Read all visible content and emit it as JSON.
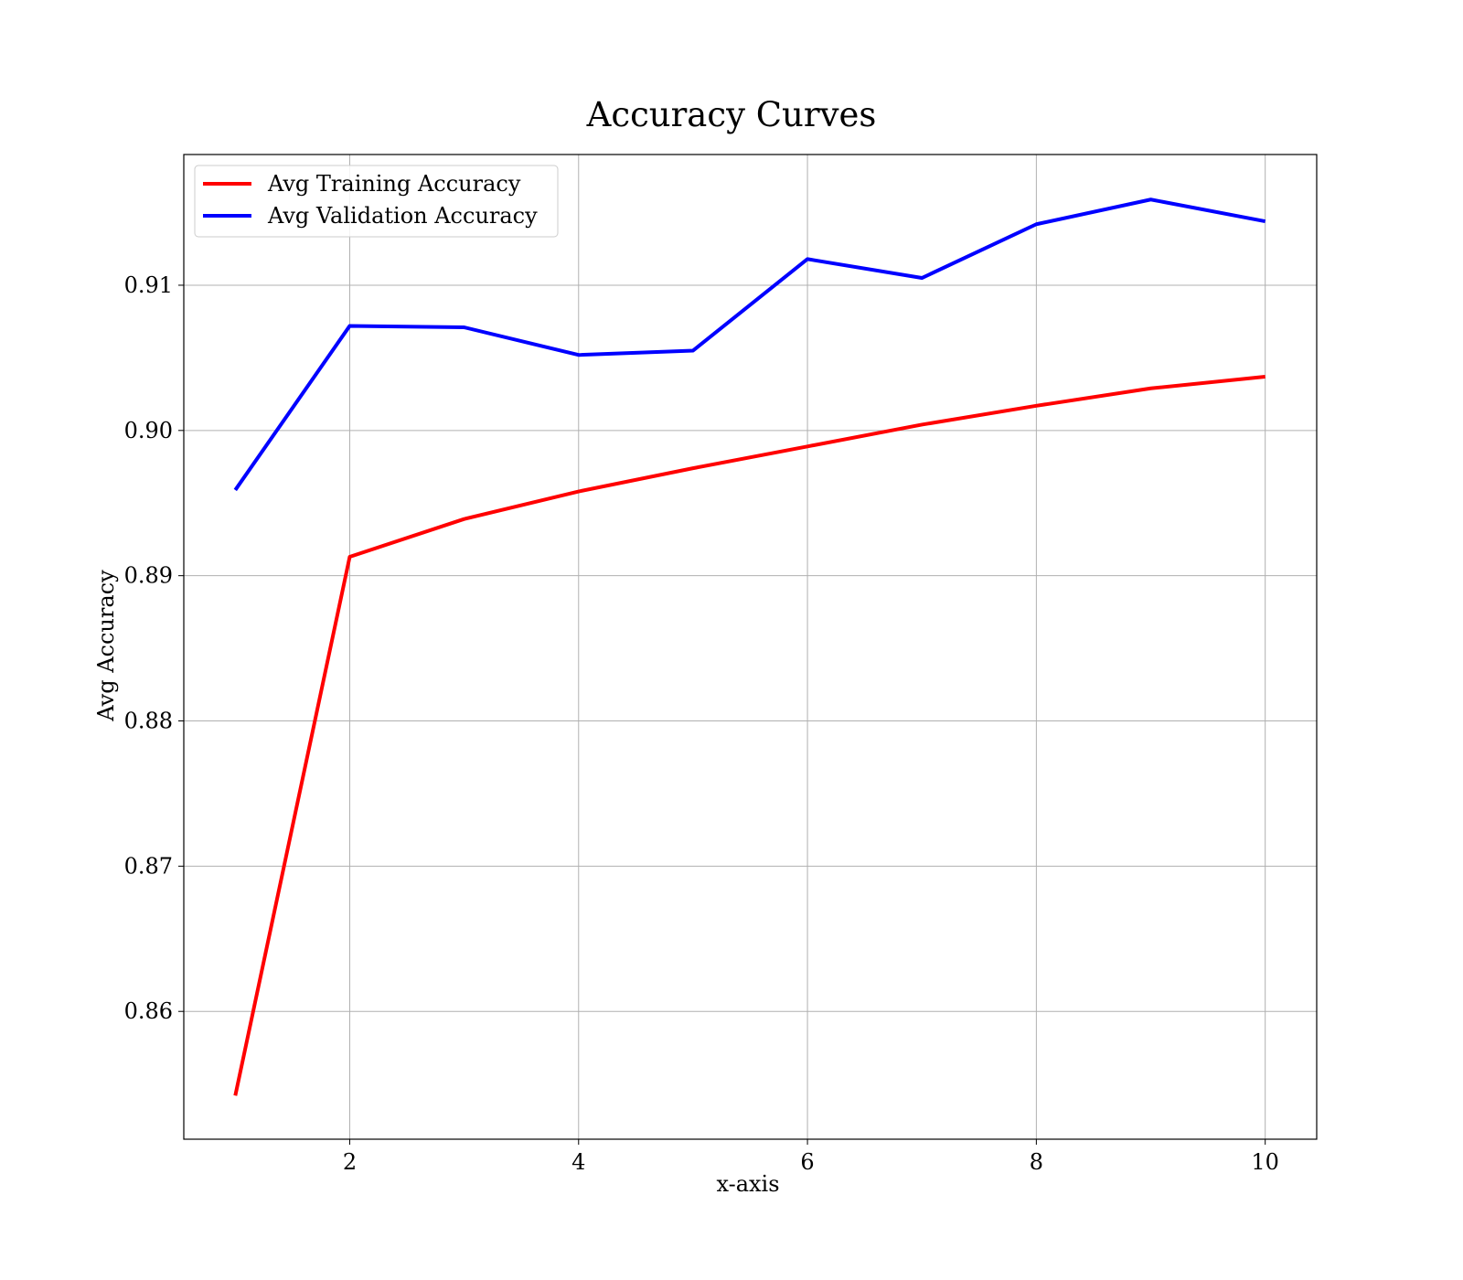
{
  "chart_data": {
    "type": "line",
    "title": "Accuracy Curves",
    "xlabel": "x-axis",
    "ylabel": "Avg Accuracy",
    "xlim": [
      0.55,
      10.45
    ],
    "ylim": [
      0.8512,
      0.919
    ],
    "x_ticks": [
      2,
      4,
      6,
      8,
      10
    ],
    "y_ticks": [
      0.86,
      0.87,
      0.88,
      0.89,
      0.9,
      0.91
    ],
    "x_tick_labels": [
      "2",
      "4",
      "6",
      "8",
      "10"
    ],
    "y_tick_labels": [
      "0.86",
      "0.87",
      "0.88",
      "0.89",
      "0.90",
      "0.91"
    ],
    "grid": true,
    "legend_position": "top-left",
    "x": [
      1,
      2,
      3,
      4,
      5,
      6,
      7,
      8,
      9,
      10
    ],
    "series": [
      {
        "name": "Avg Training Accuracy",
        "color": "#ff0000",
        "values": [
          0.8542,
          0.8913,
          0.8939,
          0.8958,
          0.8974,
          0.8989,
          0.9004,
          0.9017,
          0.9029,
          0.9037
        ]
      },
      {
        "name": "Avg Validation Accuracy",
        "color": "#0000ff",
        "values": [
          0.8959,
          0.9072,
          0.9071,
          0.9052,
          0.9055,
          0.9118,
          0.9105,
          0.9142,
          0.9159,
          0.9144
        ]
      }
    ]
  }
}
